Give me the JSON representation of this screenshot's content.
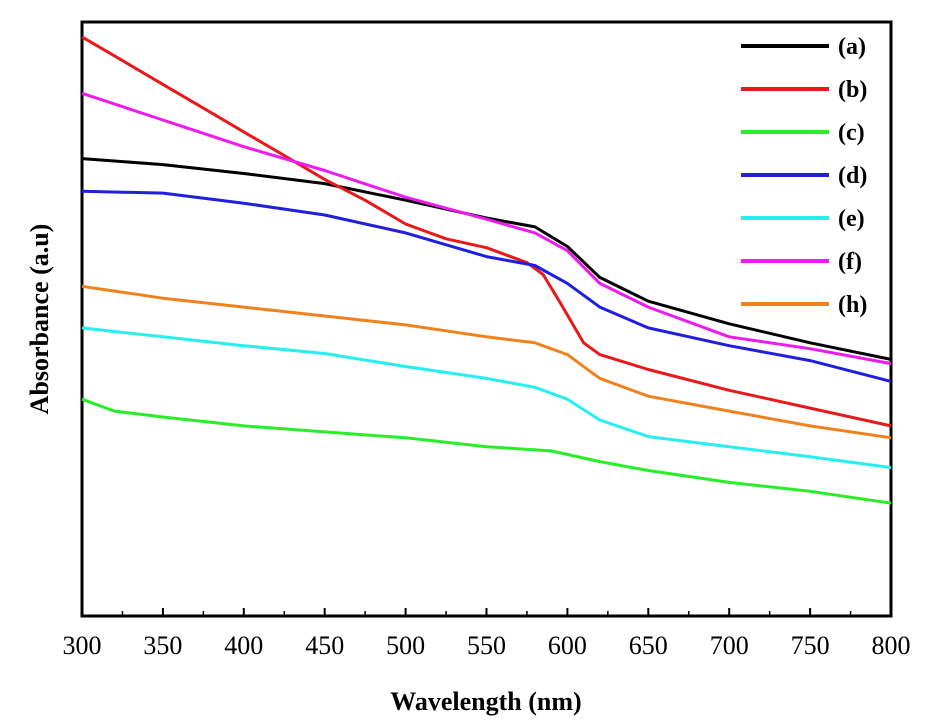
{
  "chart_data": {
    "type": "line",
    "title": "",
    "xlabel": "Wavelength (nm)",
    "ylabel": "Absorbance (a.u)",
    "xlim": [
      300,
      800
    ],
    "ylim": [
      0,
      1
    ],
    "xticks": [
      300,
      350,
      400,
      450,
      500,
      550,
      600,
      650,
      700,
      750,
      800
    ],
    "yticks_shown": false,
    "legend_position": "top-right",
    "grid": false,
    "series": [
      {
        "name": "(a)",
        "color": "#000000",
        "x": [
          300,
          350,
          400,
          450,
          500,
          550,
          580,
          600,
          620,
          650,
          700,
          750,
          800
        ],
        "y": [
          0.77,
          0.76,
          0.745,
          0.728,
          0.7,
          0.67,
          0.655,
          0.622,
          0.57,
          0.53,
          0.492,
          0.46,
          0.432
        ]
      },
      {
        "name": "(b)",
        "color": "#e8191a",
        "x": [
          300,
          325,
          350,
          375,
          400,
          425,
          450,
          475,
          500,
          525,
          550,
          575,
          585,
          595,
          610,
          620,
          650,
          700,
          750,
          800
        ],
        "y": [
          0.975,
          0.935,
          0.895,
          0.855,
          0.815,
          0.775,
          0.735,
          0.7,
          0.66,
          0.635,
          0.62,
          0.595,
          0.575,
          0.53,
          0.46,
          0.44,
          0.415,
          0.38,
          0.35,
          0.32
        ]
      },
      {
        "name": "(c)",
        "color": "#28ee28",
        "x": [
          300,
          320,
          350,
          400,
          450,
          500,
          550,
          590,
          620,
          650,
          700,
          750,
          800
        ],
        "y": [
          0.365,
          0.345,
          0.335,
          0.32,
          0.31,
          0.3,
          0.285,
          0.278,
          0.26,
          0.245,
          0.225,
          0.21,
          0.19
        ]
      },
      {
        "name": "(d)",
        "color": "#1f1fdc",
        "x": [
          300,
          350,
          400,
          450,
          500,
          550,
          580,
          600,
          620,
          650,
          700,
          750,
          800
        ],
        "y": [
          0.715,
          0.712,
          0.695,
          0.675,
          0.645,
          0.605,
          0.59,
          0.56,
          0.52,
          0.485,
          0.455,
          0.43,
          0.395
        ]
      },
      {
        "name": "(e)",
        "color": "#26efef",
        "x": [
          300,
          350,
          400,
          450,
          500,
          550,
          580,
          600,
          620,
          650,
          700,
          750,
          800
        ],
        "y": [
          0.485,
          0.47,
          0.455,
          0.442,
          0.42,
          0.4,
          0.385,
          0.365,
          0.33,
          0.302,
          0.285,
          0.268,
          0.25
        ]
      },
      {
        "name": "(f)",
        "color": "#ee1aee",
        "x": [
          300,
          350,
          400,
          450,
          500,
          550,
          580,
          600,
          620,
          650,
          700,
          750,
          800
        ],
        "y": [
          0.88,
          0.835,
          0.79,
          0.75,
          0.705,
          0.668,
          0.645,
          0.615,
          0.56,
          0.52,
          0.47,
          0.45,
          0.425
        ]
      },
      {
        "name": "(h)",
        "color": "#f0821e",
        "x": [
          300,
          350,
          400,
          450,
          500,
          550,
          580,
          600,
          620,
          650,
          700,
          750,
          800
        ],
        "y": [
          0.555,
          0.535,
          0.52,
          0.505,
          0.49,
          0.47,
          0.46,
          0.44,
          0.4,
          0.37,
          0.345,
          0.32,
          0.3
        ]
      }
    ]
  }
}
